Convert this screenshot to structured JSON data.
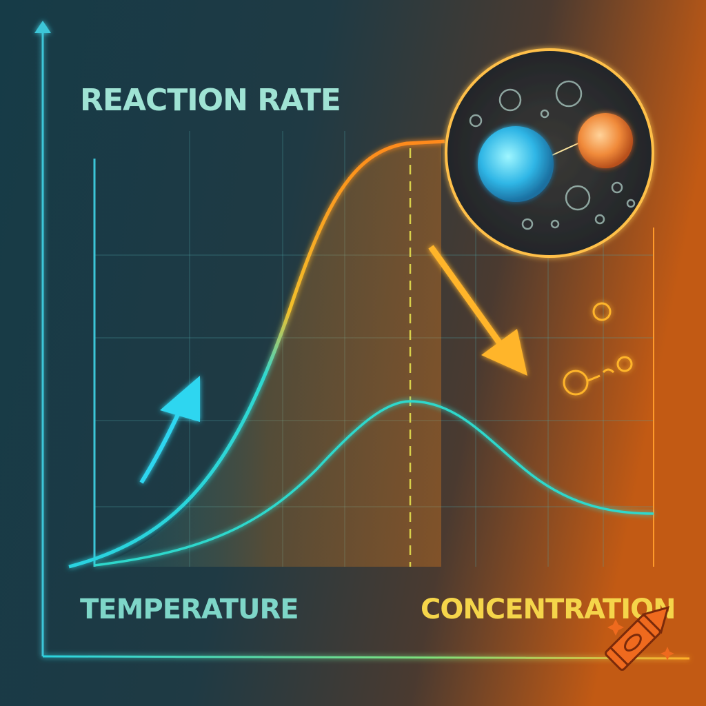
{
  "labels": {
    "reaction_rate": "REACTION RATE",
    "temperature": "TEMPERATURE",
    "concentration": "CONCENTRATION"
  }
}
